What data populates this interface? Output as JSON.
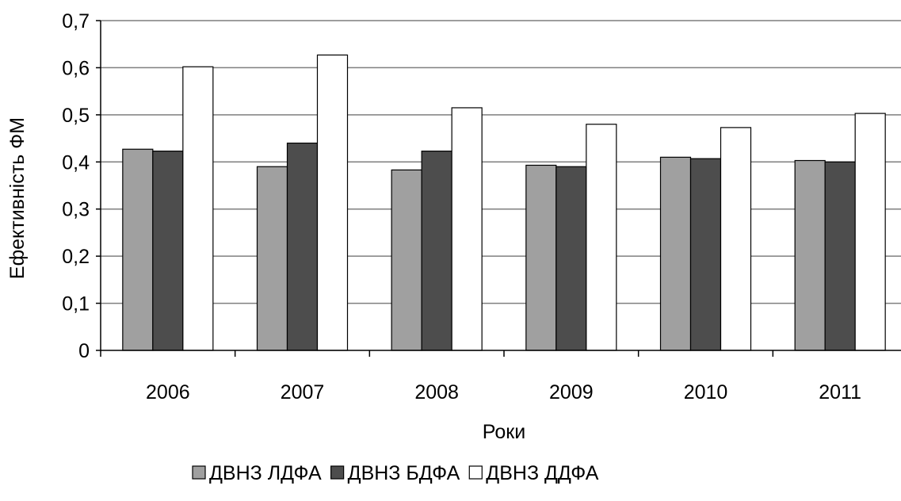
{
  "chart_data": {
    "type": "bar",
    "title": "",
    "xlabel": "Роки",
    "ylabel": "Ефективність ФМ",
    "ylim": [
      0,
      0.7
    ],
    "yticks": [
      "0",
      "0,1",
      "0,2",
      "0,3",
      "0,4",
      "0,5",
      "0,6",
      "0,7"
    ],
    "grid": true,
    "legend_position": "bottom",
    "categories": [
      "2006",
      "2007",
      "2008",
      "2009",
      "2010",
      "2011"
    ],
    "series": [
      {
        "name": "ДВНЗ ЛДФА",
        "color": "#a0a0a0",
        "values": [
          0.427,
          0.39,
          0.383,
          0.393,
          0.41,
          0.403
        ]
      },
      {
        "name": "ДВНЗ БДФА",
        "color": "#4d4d4d",
        "values": [
          0.423,
          0.44,
          0.423,
          0.39,
          0.407,
          0.4
        ]
      },
      {
        "name": "ДВНЗ ДДФА",
        "color": "#ffffff",
        "values": [
          0.602,
          0.627,
          0.515,
          0.48,
          0.473,
          0.503
        ]
      }
    ]
  }
}
